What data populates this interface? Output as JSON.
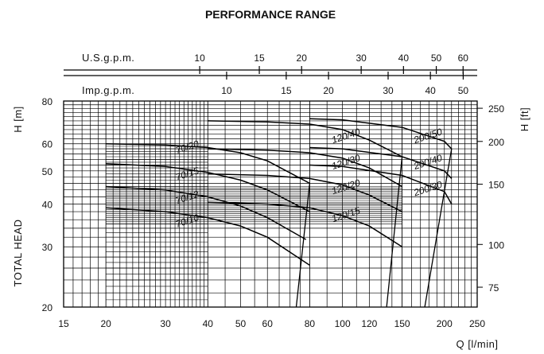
{
  "chart_data": {
    "type": "line",
    "title": "PERFORMANCE RANGE",
    "xlabel": "Q [l/min]",
    "ylabel_left": "TOTAL HEAD",
    "ylabel_left_unit": "H [m]",
    "ylabel_right_unit": "H [ft]",
    "x_scale": "log",
    "y_scale": "log",
    "xlim": [
      15,
      250
    ],
    "ylim": [
      20,
      80
    ],
    "x_ticks": [
      15,
      20,
      30,
      40,
      50,
      60,
      80,
      100,
      120,
      150,
      200,
      250
    ],
    "y_ticks_left": [
      20,
      30,
      40,
      50,
      60,
      80
    ],
    "y_ticks_right": [
      75,
      100,
      150,
      200,
      250
    ],
    "usgpm_label": "U.S.g.p.m.",
    "usgpm_ticks": [
      10,
      15,
      20,
      30,
      40,
      50,
      60
    ],
    "impgpm_label": "Imp.g.p.m.",
    "impgpm_ticks": [
      10,
      15,
      20,
      30,
      40,
      50
    ],
    "grid": true,
    "series": [
      {
        "name": "70/20",
        "x": [
          20,
          30,
          40,
          50,
          60,
          80
        ],
        "y": [
          60,
          59.5,
          58.5,
          56.5,
          53.5,
          46
        ]
      },
      {
        "name": "70/15",
        "x": [
          20,
          30,
          40,
          50,
          60,
          80
        ],
        "y": [
          52.5,
          51.5,
          49.5,
          47,
          44,
          38
        ]
      },
      {
        "name": "70/12",
        "x": [
          20,
          30,
          40,
          50,
          60,
          78
        ],
        "y": [
          45,
          44,
          42,
          39.5,
          36.5,
          31.5
        ]
      },
      {
        "name": "70/10",
        "x": [
          20,
          30,
          40,
          50,
          60,
          80
        ],
        "y": [
          39,
          38,
          36.5,
          34.5,
          32,
          26.5
        ]
      },
      {
        "name": "120/40",
        "x": [
          40,
          60,
          80,
          100,
          120,
          150
        ],
        "y": [
          70,
          69.5,
          68.5,
          66,
          61.5,
          55
        ]
      },
      {
        "name": "120/30",
        "x": [
          40,
          60,
          80,
          100,
          120,
          150
        ],
        "y": [
          58,
          57.5,
          56.5,
          54.5,
          51,
          45
        ]
      },
      {
        "name": "120/20",
        "x": [
          40,
          60,
          80,
          100,
          120,
          150
        ],
        "y": [
          49,
          48.5,
          47.5,
          45.5,
          42.5,
          38
        ]
      },
      {
        "name": "120/15",
        "x": [
          40,
          60,
          80,
          100,
          120,
          150
        ],
        "y": [
          40.5,
          40,
          39,
          37,
          34.5,
          30
        ]
      },
      {
        "name": "200/50",
        "x": [
          80,
          100,
          150,
          200,
          210
        ],
        "y": [
          71,
          70.5,
          67,
          61,
          58
        ]
      },
      {
        "name": "200/40",
        "x": [
          80,
          100,
          150,
          200,
          210
        ],
        "y": [
          58.5,
          58,
          55,
          50,
          47.5
        ]
      },
      {
        "name": "200/30",
        "x": [
          80,
          100,
          150,
          200,
          210
        ],
        "y": [
          52,
          51.5,
          48.5,
          43.5,
          40
        ]
      }
    ],
    "boundaries": [
      {
        "x": [
          80,
          73
        ],
        "y": [
          46,
          20
        ]
      },
      {
        "x": [
          150,
          135
        ],
        "y": [
          55,
          20
        ]
      },
      {
        "x": [
          210,
          175
        ],
        "y": [
          58,
          20
        ]
      }
    ],
    "curve_labels": [
      {
        "text": "70/20",
        "x": 35,
        "y": 57.5
      },
      {
        "text": "70/15",
        "x": 35,
        "y": 48
      },
      {
        "text": "70/12",
        "x": 35,
        "y": 41
      },
      {
        "text": "70/10",
        "x": 35,
        "y": 35
      },
      {
        "text": "120/40",
        "x": 103,
        "y": 62
      },
      {
        "text": "120/30",
        "x": 103,
        "y": 52
      },
      {
        "text": "120/20",
        "x": 103,
        "y": 44
      },
      {
        "text": "120/15",
        "x": 103,
        "y": 36.5
      },
      {
        "text": "200/50",
        "x": 180,
        "y": 62
      },
      {
        "text": "200/40",
        "x": 180,
        "y": 52
      },
      {
        "text": "200/30",
        "x": 180,
        "y": 43.5
      }
    ]
  }
}
